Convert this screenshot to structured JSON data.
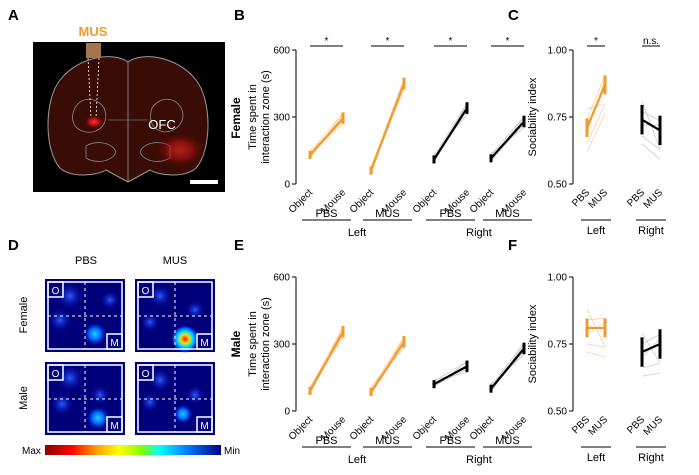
{
  "panels": {
    "A": "A",
    "B": "B",
    "C": "C",
    "D": "D",
    "E": "E",
    "F": "F"
  },
  "panelA": {
    "drug": "MUS",
    "region": "OFC"
  },
  "panelD": {
    "col_labels": [
      "PBS",
      "MUS"
    ],
    "row_labels": [
      "Female",
      "Male"
    ],
    "corner_object": "O",
    "corner_mouse": "M",
    "colorbar_min": "Min",
    "colorbar_max": "Max"
  },
  "row_labels": {
    "female": "Female",
    "male": "Male"
  },
  "axis_labels": {
    "time_line1": "Time spent in",
    "time_line2": "interaction zone (s)",
    "sociability": "Sociability index"
  },
  "common": {
    "object": "Object",
    "mouse": "Mouse",
    "pbs": "PBS",
    "mus": "MUS",
    "left": "Left",
    "right": "Right",
    "sig": "*",
    "ns": "n.s."
  },
  "colors": {
    "left": "#f39a2b",
    "right": "#000000",
    "faint_left": "#f8cf9c",
    "faint_right": "#cccccc"
  },
  "chart_data": [
    {
      "panel": "B",
      "type": "line",
      "title": "Female",
      "ylabel": "Time spent in interaction zone (s)",
      "ylim": [
        0,
        600
      ],
      "yticks": [
        "0",
        "300",
        "600"
      ],
      "categories": [
        "Object",
        "Mouse"
      ],
      "series": [
        {
          "name": "Left PBS",
          "values": [
            130,
            295
          ],
          "significance": "*"
        },
        {
          "name": "Left MUS",
          "values": [
            60,
            450
          ],
          "significance": "*"
        },
        {
          "name": "Right PBS",
          "values": [
            110,
            340
          ],
          "significance": "*"
        },
        {
          "name": "Right MUS",
          "values": [
            115,
            280
          ],
          "significance": "*"
        }
      ]
    },
    {
      "panel": "C",
      "type": "line",
      "title": "Female",
      "ylabel": "Sociability index",
      "ylim": [
        0.5,
        1.0
      ],
      "yticks": [
        "0.50",
        "0.75",
        "1.00"
      ],
      "categories": [
        "PBS",
        "MUS"
      ],
      "series": [
        {
          "name": "Left",
          "values": [
            0.71,
            0.87
          ],
          "significance": "*"
        },
        {
          "name": "Right",
          "values": [
            0.74,
            0.7
          ],
          "significance": "n.s."
        }
      ]
    },
    {
      "panel": "E",
      "type": "line",
      "title": "Male",
      "ylabel": "Time spent in interaction zone (s)",
      "ylim": [
        0,
        600
      ],
      "yticks": [
        "0",
        "300",
        "600"
      ],
      "categories": [
        "Object",
        "Mouse"
      ],
      "series": [
        {
          "name": "Left PBS",
          "values": [
            90,
            355
          ]
        },
        {
          "name": "Left MUS",
          "values": [
            85,
            310
          ]
        },
        {
          "name": "Right PBS",
          "values": [
            120,
            200
          ]
        },
        {
          "name": "Right MUS",
          "values": [
            100,
            280
          ]
        }
      ]
    },
    {
      "panel": "F",
      "type": "line",
      "title": "Male",
      "ylabel": "Sociability index",
      "ylim": [
        0.5,
        1.0
      ],
      "yticks": [
        "0.50",
        "0.75",
        "1.00"
      ],
      "categories": [
        "PBS",
        "MUS"
      ],
      "series": [
        {
          "name": "Left",
          "values": [
            0.81,
            0.81
          ]
        },
        {
          "name": "Right",
          "values": [
            0.72,
            0.75
          ]
        }
      ]
    }
  ]
}
